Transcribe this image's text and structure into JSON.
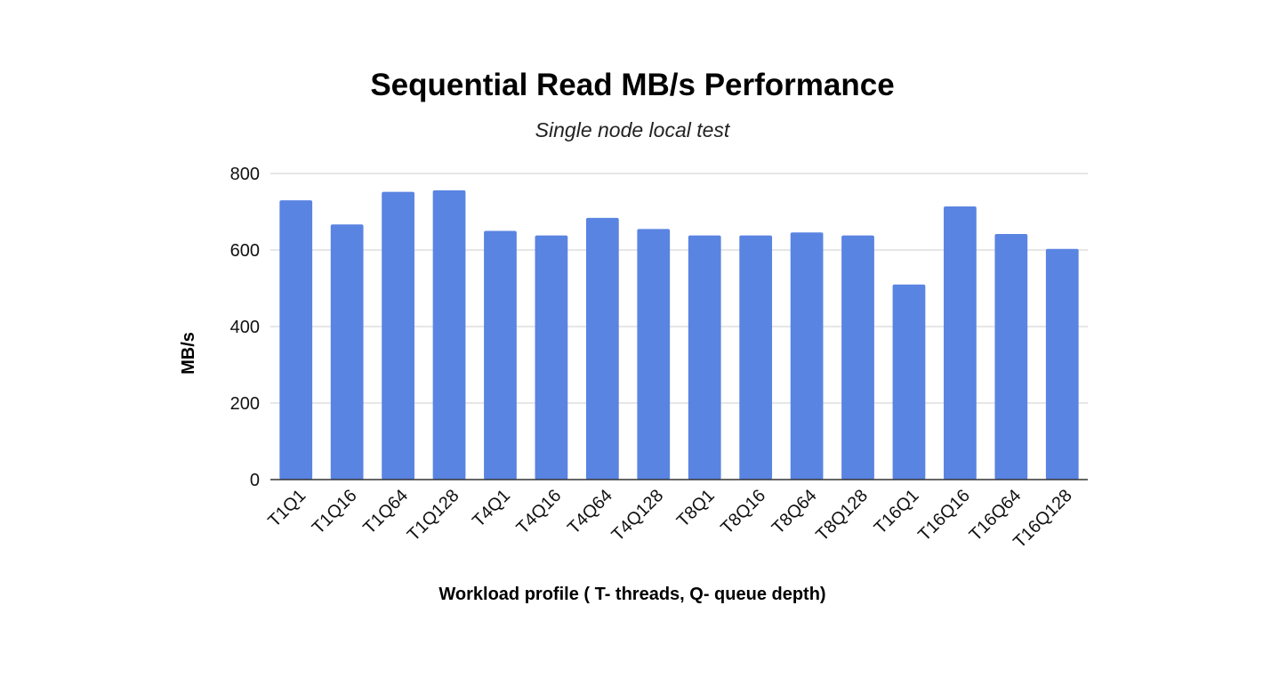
{
  "chart_data": {
    "type": "bar",
    "title": "Sequential Read MB/s Performance",
    "subtitle": "Single node local test",
    "xlabel": "Workload profile ( T- threads, Q- queue depth)",
    "ylabel": "MB/s",
    "ylim": [
      0,
      800
    ],
    "yticks": [
      "0",
      "200",
      "400",
      "600",
      "800"
    ],
    "grid": true,
    "legend": "none",
    "bar_color": "#5a84e2",
    "categories": [
      "T1Q1",
      "T1Q16",
      "T1Q64",
      "T1Q128",
      "T4Q1",
      "T4Q16",
      "T4Q64",
      "T4Q128",
      "T8Q1",
      "T8Q16",
      "T8Q64",
      "T8Q128",
      "T16Q1",
      "T16Q16",
      "T16Q64",
      "T16Q128"
    ],
    "values": [
      730,
      667,
      752,
      756,
      650,
      638,
      684,
      655,
      638,
      638,
      646,
      638,
      510,
      714,
      642,
      603
    ]
  }
}
